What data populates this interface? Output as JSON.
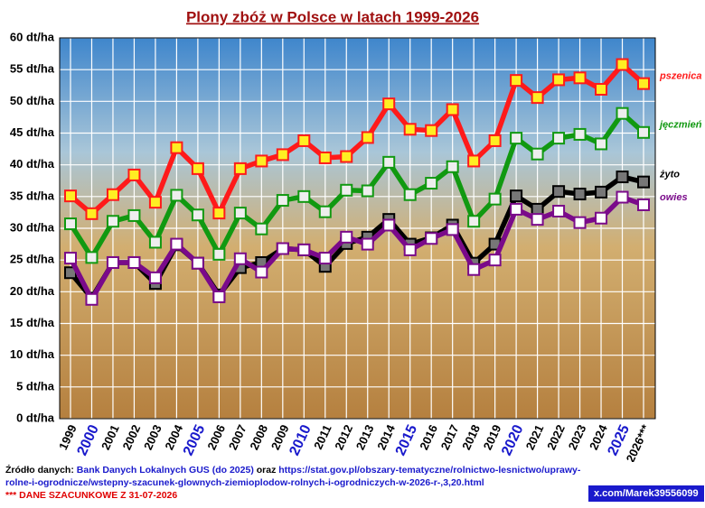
{
  "chart_data": {
    "type": "line",
    "title": "Plony zbóż w Polsce w latach 1999-2026",
    "categories": [
      "1999",
      "2000",
      "2001",
      "2002",
      "2003",
      "2004",
      "2005",
      "2006",
      "2007",
      "2008",
      "2009",
      "2010",
      "2011",
      "2012",
      "2013",
      "2014",
      "2015",
      "2016",
      "2017",
      "2018",
      "2019",
      "2020",
      "2021",
      "2022",
      "2023",
      "2024",
      "2025",
      "2026***"
    ],
    "category_colors": [
      "#000",
      "#1a1acc",
      "#000",
      "#000",
      "#000",
      "#000",
      "#1a1acc",
      "#000",
      "#000",
      "#000",
      "#000",
      "#1a1acc",
      "#000",
      "#000",
      "#000",
      "#000",
      "#1a1acc",
      "#000",
      "#000",
      "#000",
      "#000",
      "#1a1acc",
      "#000",
      "#000",
      "#000",
      "#000",
      "#1a1acc",
      "#000"
    ],
    "series": [
      {
        "name": "pszenica",
        "color": "#ff1a1a",
        "marker_fill": "#ffee22",
        "values": [
          35.1,
          32.3,
          35.3,
          38.4,
          34.1,
          42.7,
          39.4,
          32.4,
          39.4,
          40.6,
          41.6,
          43.8,
          41.1,
          41.3,
          44.3,
          49.6,
          45.6,
          45.4,
          48.7,
          40.6,
          43.8,
          53.3,
          50.6,
          53.4,
          53.7,
          51.9,
          55.8,
          52.8
        ]
      },
      {
        "name": "jęczmień",
        "color": "#119911",
        "marker_fill": "#eeeeee",
        "values": [
          30.7,
          25.4,
          31.1,
          32.0,
          27.8,
          35.2,
          32.1,
          25.9,
          32.4,
          29.9,
          34.4,
          35.0,
          32.6,
          36.0,
          35.9,
          40.4,
          35.3,
          37.1,
          39.7,
          31.1,
          34.6,
          44.2,
          41.7,
          44.2,
          44.8,
          43.3,
          48.1,
          45.1
        ]
      },
      {
        "name": "żyto",
        "color": "#000000",
        "marker_fill": "#777777",
        "values": [
          23.0,
          19.0,
          24.6,
          24.6,
          21.3,
          27.4,
          24.5,
          19.5,
          23.8,
          24.6,
          26.8,
          26.6,
          24.0,
          27.6,
          28.6,
          31.4,
          27.5,
          28.5,
          30.5,
          24.5,
          27.5,
          35.1,
          33.0,
          35.8,
          35.4,
          35.7,
          38.1,
          37.3
        ]
      },
      {
        "name": "owies",
        "color": "#7a0a8a",
        "marker_fill": "#ffffff",
        "values": [
          25.3,
          18.8,
          24.6,
          24.6,
          22.2,
          27.5,
          24.5,
          19.2,
          25.2,
          23.1,
          26.8,
          26.6,
          25.3,
          28.6,
          27.5,
          30.5,
          26.6,
          28.4,
          29.8,
          23.5,
          25.0,
          33.0,
          31.4,
          32.7,
          30.9,
          31.6,
          34.9,
          33.7
        ]
      }
    ],
    "ylim": [
      0,
      60
    ],
    "yticks": [
      {
        "value": 0,
        "label": "0 dt/ha"
      },
      {
        "value": 5,
        "label": "5 dt/ha"
      },
      {
        "value": 10,
        "label": "10 dt/ha"
      },
      {
        "value": 15,
        "label": "15 dt/ha"
      },
      {
        "value": 20,
        "label": "20 dt/ha"
      },
      {
        "value": 25,
        "label": "25 dt/ha"
      },
      {
        "value": 30,
        "label": "30 dt/ha"
      },
      {
        "value": 35,
        "label": "35 dt/ha"
      },
      {
        "value": 40,
        "label": "40 dt/ha"
      },
      {
        "value": 45,
        "label": "45 dt/ha"
      },
      {
        "value": 50,
        "label": "50 dt/ha"
      },
      {
        "value": 55,
        "label": "55 dt/ha"
      },
      {
        "value": 60,
        "label": "60 dt/ha"
      }
    ],
    "grid": true
  },
  "source": {
    "prefix": "Źródło danych:",
    "link1": "Bank Danych Lokalnych GUS (do 2025)",
    "joiner": "oraz",
    "link2": "https://stat.gov.pl/obszary-tematyczne/rolnictwo-lesnictwo/uprawy-rolne-i-ogrodnicze/wstepny-szacunek-glownych-ziemioplodow-rolnych-i-ogrodniczych-w-2026-r-,3,20.html",
    "note": "*** DANE SZACUNKOWE Z 31-07-2026"
  },
  "handle": "x.com/Marek39556099"
}
